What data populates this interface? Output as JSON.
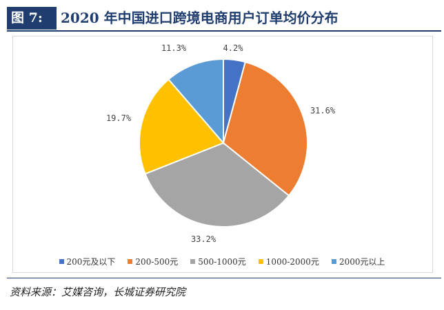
{
  "header": {
    "figure_label": "图 7:",
    "title": "2020 年中国进口跨境电商用户订单均价分布"
  },
  "chart_data": {
    "type": "pie",
    "categories": [
      "200元及以下",
      "200-500元",
      "500-1000元",
      "1000-2000元",
      "2000元以上"
    ],
    "values": [
      4.2,
      31.6,
      33.2,
      19.7,
      11.3
    ],
    "labels": [
      "4.2%",
      "31.6%",
      "33.2%",
      "19.7%",
      "11.3%"
    ],
    "colors": [
      "#4472c4",
      "#ed7d31",
      "#a5a5a5",
      "#ffc000",
      "#5b9bd5"
    ],
    "legend_position": "bottom"
  },
  "source": "资料来源：艾媒咨询，长城证券研究院"
}
